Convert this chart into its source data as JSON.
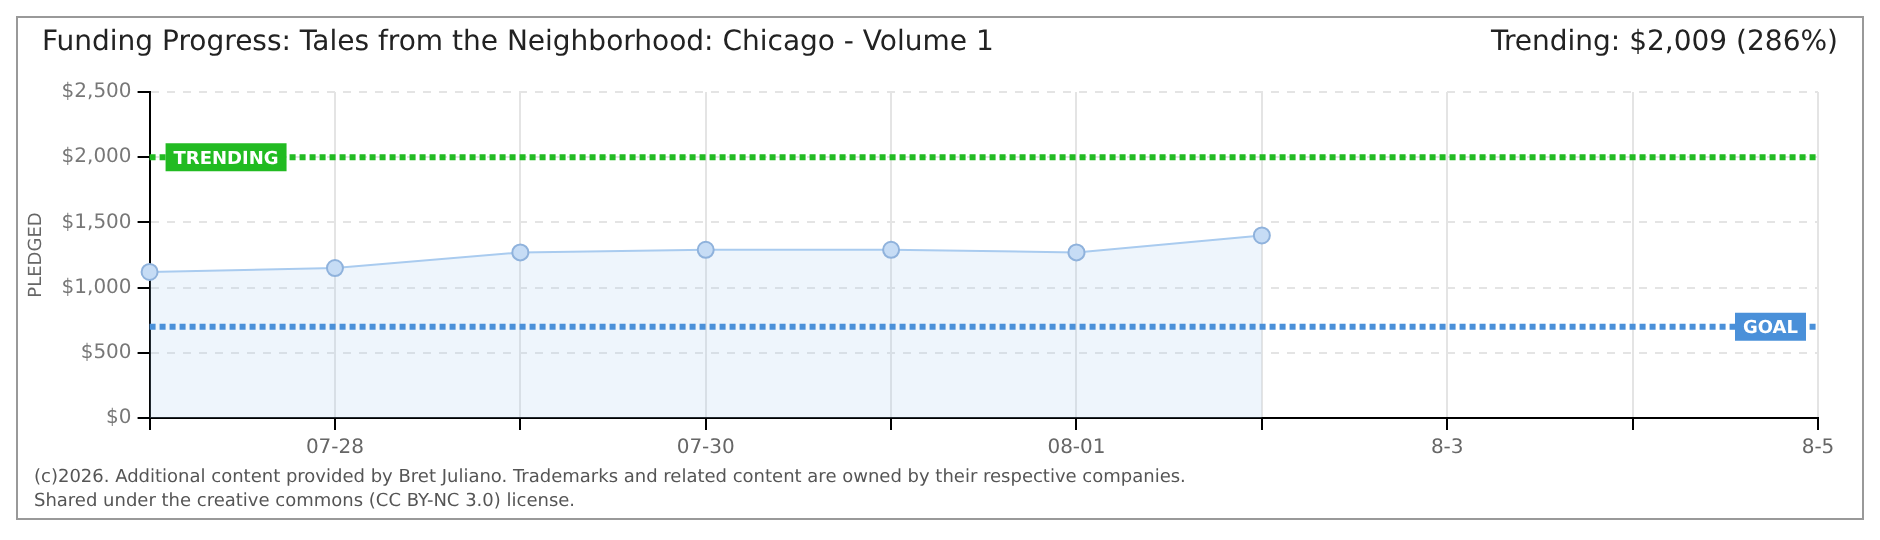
{
  "chart_data": {
    "type": "area",
    "title": "Funding Progress: Tales from the Neighborhood: Chicago - Volume 1",
    "subtitle": "Trending:  $2,009 (286%)",
    "ylabel": "PLEDGED",
    "categories": [
      null,
      "07-28",
      null,
      "07-30",
      null,
      "08-01",
      null,
      "8-3",
      null,
      "8-5"
    ],
    "series": [
      {
        "color": "#a9cbef",
        "values": [
          1120,
          1150,
          1270,
          1290,
          1290,
          1270,
          1400,
          null,
          null,
          null
        ]
      }
    ],
    "ylim": [
      0,
      2500
    ],
    "yticks": [
      {
        "value": 0,
        "label": "$0"
      },
      {
        "value": 500,
        "label": "$500"
      },
      {
        "value": 1000,
        "label": "$1,000"
      },
      {
        "value": 1500,
        "label": "$1,500"
      },
      {
        "value": 2000,
        "label": "$2,000"
      },
      {
        "value": 2500,
        "label": "$2,500"
      }
    ],
    "ref_lines": [
      {
        "axis": "y",
        "value": 2000,
        "label": "TRENDING",
        "color": "#22bb22",
        "line_style": "dotted"
      },
      {
        "axis": "y",
        "value": 700,
        "label": "GOAL",
        "color": "#4a90d9",
        "line_style": "dotted"
      }
    ],
    "annotations": [
      "(c)2026. Additional content provided by Bret Juliano. Trademarks and related content are owned by their respective companies.",
      "Shared under the creative commons (CC BY-NC 3.0) license."
    ],
    "grid": true,
    "marker": "circle",
    "legend": false
  }
}
